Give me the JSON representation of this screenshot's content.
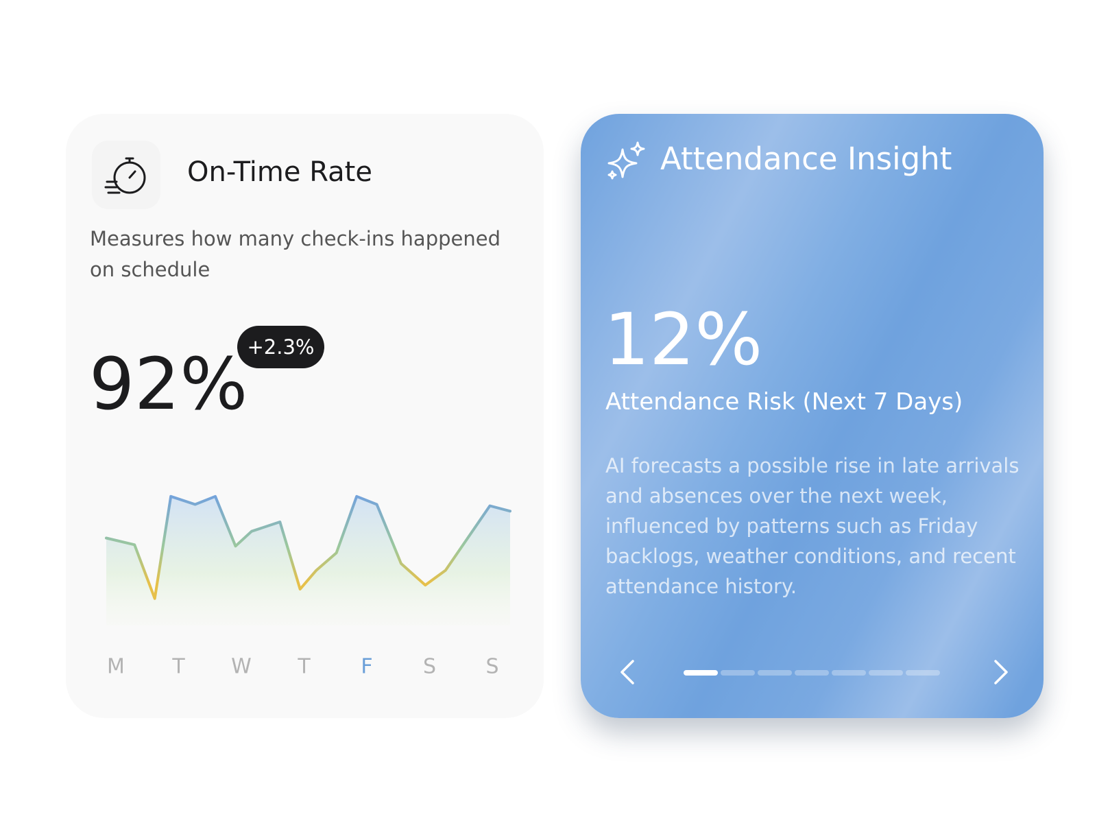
{
  "left_card": {
    "title": "On-Time Rate",
    "description": "Measures how many check-ins happened on schedule",
    "value": "92%",
    "badge": "+2.3%",
    "chart_data": {
      "type": "line",
      "x": [
        0,
        7,
        12,
        16,
        22,
        27,
        32,
        36,
        43,
        48,
        52,
        57,
        62,
        67,
        73,
        79,
        84,
        95,
        100
      ],
      "values": [
        63,
        58,
        18,
        94,
        88,
        94,
        57,
        68,
        75,
        25,
        39,
        52,
        94,
        88,
        44,
        28,
        39,
        87,
        83
      ],
      "xlim": [
        0,
        100
      ],
      "ylim": [
        0,
        100
      ],
      "categories": [
        "M",
        "T",
        "W",
        "T",
        "F",
        "S",
        "S"
      ],
      "highlight_index": 4,
      "color": "#7aa7d8",
      "highlight_color": "#6a9fd8"
    }
  },
  "right_card": {
    "title": "Attendance Insight",
    "value": "12%",
    "label": "Attendance Risk (Next 7 Days)",
    "description": "AI forecasts a possible rise in late arrivals and absences over the next week, influenced by patterns such as Friday backlogs, weather conditions, and recent attendance history.",
    "carousel": {
      "pages": 7,
      "active": 0
    }
  }
}
